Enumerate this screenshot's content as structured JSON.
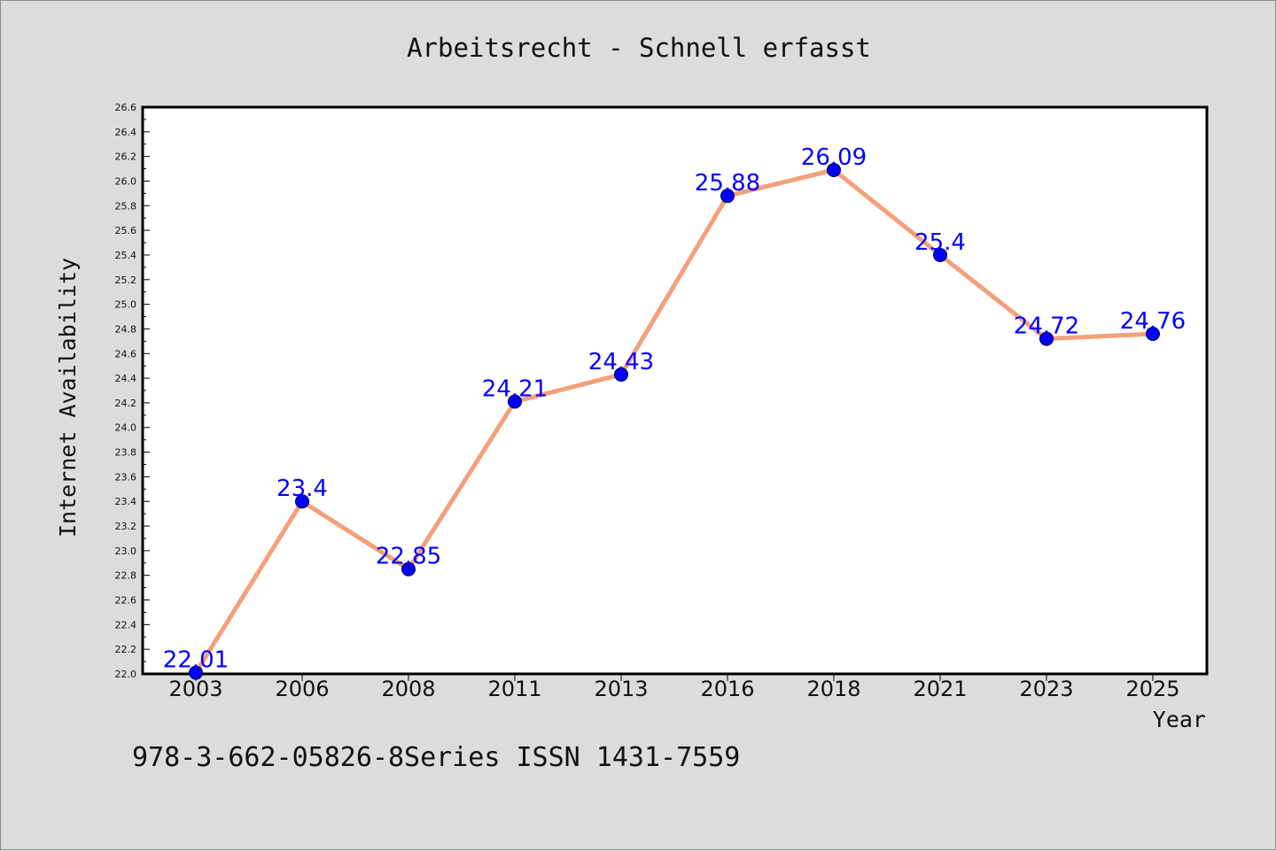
{
  "chart_data": {
    "type": "line",
    "title": "Arbeitsrecht - Schnell erfasst",
    "xlabel": "Year",
    "ylabel": "Internet Availability",
    "categories": [
      "2003",
      "2006",
      "2008",
      "2011",
      "2013",
      "2016",
      "2018",
      "2021",
      "2023",
      "2025"
    ],
    "series": [
      {
        "values": [
          22.01,
          23.4,
          22.85,
          24.21,
          24.43,
          25.88,
          26.09,
          25.4,
          24.72,
          24.76
        ],
        "data_labels": [
          "22.01",
          "23.4",
          "22.85",
          "24.21",
          "24.43",
          "25.88",
          "26.09",
          "25.4",
          "24.72",
          "24.76"
        ]
      }
    ],
    "ylim": [
      22.0,
      26.6
    ],
    "y_tick_labels": [
      "22.0",
      "22.2",
      "22.4",
      "22.6",
      "22.8",
      "23.0",
      "23.2",
      "23.4",
      "23.6",
      "23.8",
      "24.0",
      "24.2",
      "24.4",
      "24.6",
      "24.8",
      "25.0",
      "25.2",
      "25.4",
      "25.6",
      "25.8",
      "26.0",
      "26.2",
      "26.4",
      "26.6"
    ],
    "grid": false,
    "legend": "none",
    "colors": {
      "line": "#f4a07a",
      "marker": "#0000ff",
      "data_label": "#0000ff",
      "plot_background": "#ffffff",
      "figure_background": "#dcdcdc"
    }
  },
  "footer": {
    "text": "978-3-662-05826-8Series ISSN 1431-7559"
  }
}
